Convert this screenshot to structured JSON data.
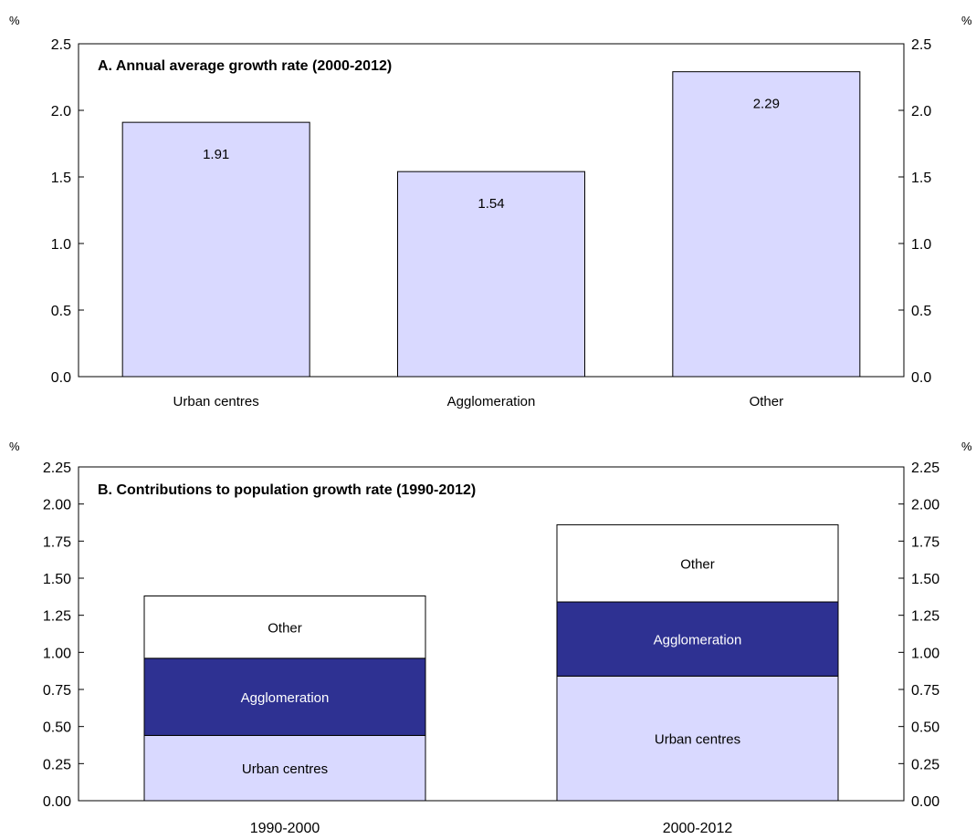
{
  "chart_data": [
    {
      "type": "bar",
      "title": "A. Annual average growth rate (2000-2012)",
      "unit_left": "%",
      "unit_right": "%",
      "categories": [
        "Urban centres",
        "Agglomeration",
        "Other"
      ],
      "values": [
        1.91,
        1.54,
        2.29
      ],
      "data_labels": [
        "1.91",
        "1.54",
        "2.29"
      ],
      "ylim": [
        0,
        2.5
      ],
      "yticks": [
        "0.0",
        "0.5",
        "1.0",
        "1.5",
        "2.0",
        "2.5"
      ],
      "bar_color": "#d9d9ff",
      "grid": false,
      "legend": "none"
    },
    {
      "type": "bar",
      "stacked": true,
      "title": "B. Contributions to population growth rate (1990-2012)",
      "unit_left": "%",
      "unit_right": "%",
      "categories": [
        "1990-2000",
        "2000-2012"
      ],
      "series": [
        {
          "name": "Urban centres",
          "values": [
            0.44,
            0.84
          ],
          "color": "#d9d9ff",
          "label_color": "#000000"
        },
        {
          "name": "Agglomeration",
          "values": [
            0.52,
            0.5
          ],
          "color": "#2e3192",
          "label_color": "#ffffff"
        },
        {
          "name": "Other",
          "values": [
            0.42,
            0.52
          ],
          "color": "#ffffff",
          "label_color": "#000000"
        }
      ],
      "ylim": [
        0,
        2.25
      ],
      "yticks": [
        "0.00",
        "0.25",
        "0.50",
        "0.75",
        "1.00",
        "1.25",
        "1.50",
        "1.75",
        "2.00",
        "2.25"
      ],
      "grid": false,
      "legend": "none"
    }
  ]
}
